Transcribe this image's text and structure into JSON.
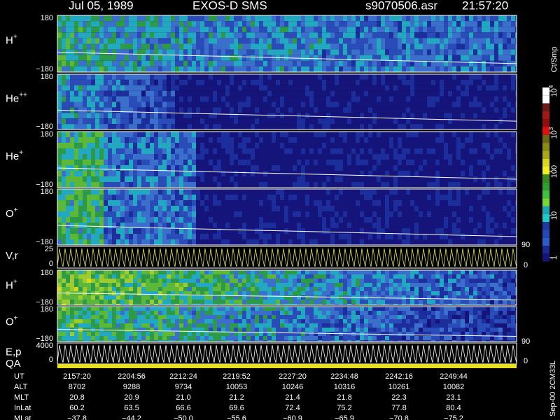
{
  "header": {
    "date": "Jul 05, 1989",
    "instrument": "EXOS-D SMS",
    "file": "s9070506.asr",
    "time": "21:57:20"
  },
  "panels": [
    {
      "label": "H",
      "sup": "+",
      "top": "180",
      "bottom": "−180"
    },
    {
      "label": "He",
      "sup": "++",
      "top": "180",
      "bottom": "−180"
    },
    {
      "label": "He",
      "sup": "+",
      "top": "180",
      "bottom": "−180"
    },
    {
      "label": "O",
      "sup": "+",
      "top": "180",
      "bottom": "−180"
    },
    {
      "label": "V,r",
      "top": "25",
      "bottom": "0",
      "right_top": "90",
      "right_bottom": "0"
    },
    {
      "label": "H",
      "sup": "+",
      "top": "180",
      "bottom": "−180"
    },
    {
      "label": "O",
      "sup": "+",
      "top": "180",
      "bottom": "−180"
    },
    {
      "label": "E,p",
      "top": "4000",
      "bottom": "0",
      "right_top": "90",
      "right_bottom": "0"
    },
    {
      "label": "QA"
    }
  ],
  "colorbar": {
    "unit": "Ct/Smp",
    "ticks": [
      {
        "text": "10",
        "sup": "4"
      },
      {
        "text": "10",
        "sup": "3"
      },
      {
        "text": "100"
      },
      {
        "text": "10"
      },
      {
        "text": "1"
      }
    ]
  },
  "footer": [
    {
      "label": "UT",
      "values": [
        "2157:20",
        "2204:56",
        "2212:24",
        "2219:52",
        "2227:20",
        "2234:48",
        "2242:16",
        "2249:44"
      ]
    },
    {
      "label": "ALT",
      "values": [
        "8702",
        "9288",
        "9734",
        "10053",
        "10246",
        "10316",
        "10261",
        "10082"
      ]
    },
    {
      "label": "MLT",
      "values": [
        "20.8",
        "20.9",
        "21.0",
        "21.2",
        "21.4",
        "21.8",
        "22.3",
        "23.1"
      ]
    },
    {
      "label": "InLat",
      "values": [
        "60.2",
        "63.5",
        "66.6",
        "69.6",
        "72.4",
        "75.2",
        "77.8",
        "80.4"
      ]
    },
    {
      "label": "MLat",
      "values": [
        "−37.8",
        "−44.2",
        "−50.0",
        "−55.6",
        "−60.9",
        "−65.9",
        "−70.8",
        "−75.2"
      ]
    }
  ],
  "side_note": "Sep-00 2CM33L"
}
